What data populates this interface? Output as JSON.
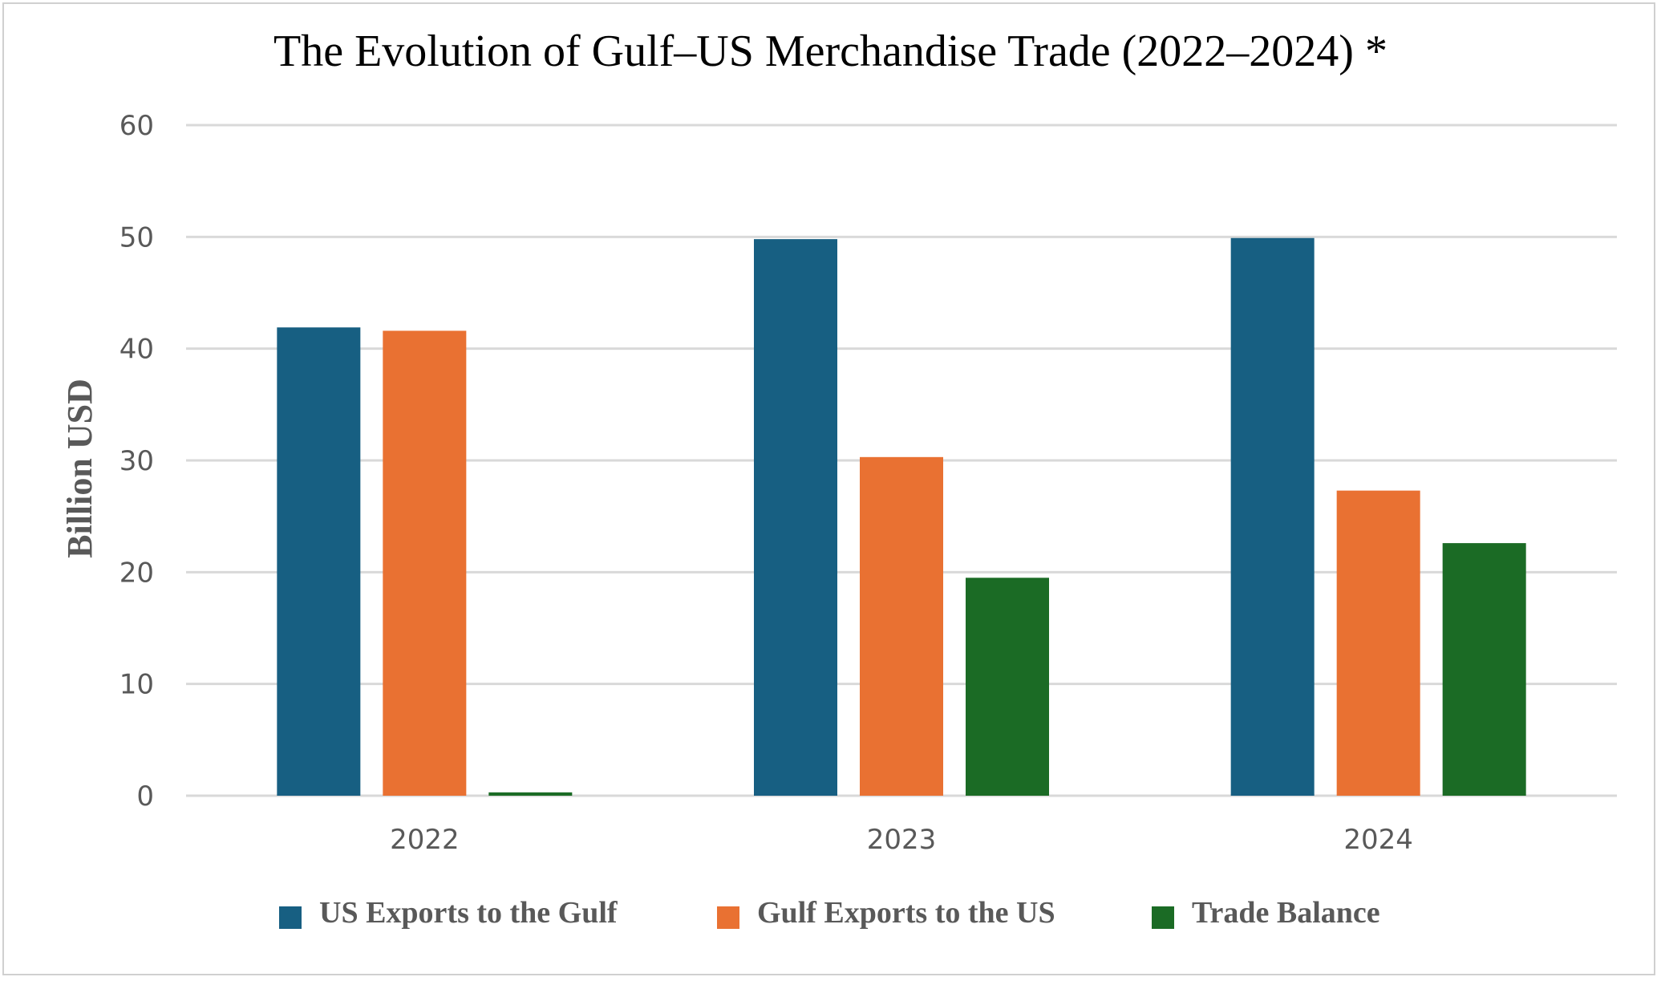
{
  "chart_data": {
    "type": "bar",
    "title": "The Evolution of Gulf–US Merchandise Trade (2022–2024) *",
    "xlabel": "",
    "ylabel": "Billion USD",
    "categories": [
      "2022",
      "2023",
      "2024"
    ],
    "ylim": [
      0,
      60
    ],
    "yticks": [
      0,
      10,
      20,
      30,
      40,
      50,
      60
    ],
    "grid": true,
    "legend_position": "bottom",
    "series": [
      {
        "name": "US Exports to the Gulf",
        "color": "#175f82",
        "values": [
          41.9,
          49.8,
          49.9
        ]
      },
      {
        "name": "Gulf Exports to the US",
        "color": "#e97132",
        "values": [
          41.6,
          30.3,
          27.3
        ]
      },
      {
        "name": "Trade Balance",
        "color": "#1b6b25",
        "values": [
          0.3,
          19.5,
          22.6
        ]
      }
    ]
  }
}
